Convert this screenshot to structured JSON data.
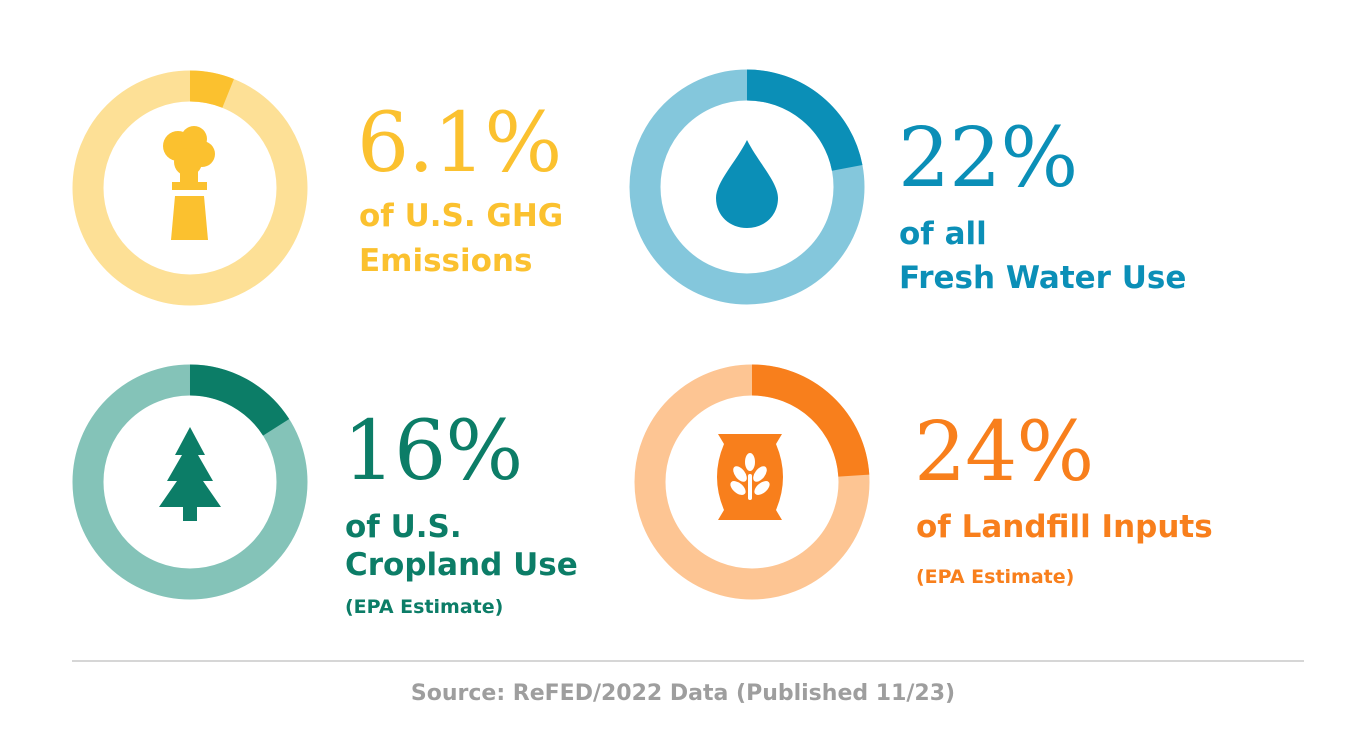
{
  "chart_data": {
    "type": "pie",
    "title": "",
    "stats": [
      {
        "id": "ghg",
        "value": 6.1,
        "display": "6.1%",
        "label_lines": [
          "of U.S. GHG",
          "Emissions"
        ],
        "note": "",
        "icon": "smokestack-icon",
        "colors": {
          "light": "#fde096",
          "dark": "#fbc12f"
        }
      },
      {
        "id": "water",
        "value": 22,
        "display": "22%",
        "label_lines": [
          "of all",
          "Fresh Water Use"
        ],
        "note": "",
        "icon": "water-drop-icon",
        "colors": {
          "light": "#84c7dc",
          "dark": "#0b8fb7"
        }
      },
      {
        "id": "cropland",
        "value": 16,
        "display": "16%",
        "label_lines": [
          "of U.S.",
          "Cropland Use"
        ],
        "note": "(EPA Estimate)",
        "icon": "pine-tree-icon",
        "colors": {
          "light": "#84c3b8",
          "dark": "#0c7d67"
        }
      },
      {
        "id": "landfill",
        "value": 24,
        "display": "24%",
        "label_lines": [
          "of Landfill Inputs"
        ],
        "note": "(EPA Estimate)",
        "icon": "grain-sack-icon",
        "colors": {
          "light": "#fdc593",
          "dark": "#f87f1c"
        }
      }
    ]
  },
  "source": "Source: ReFED/2022 Data (Published 11/23)",
  "colors": {
    "divider": "#d6d6d6",
    "source_text": "#9e9e9e"
  }
}
